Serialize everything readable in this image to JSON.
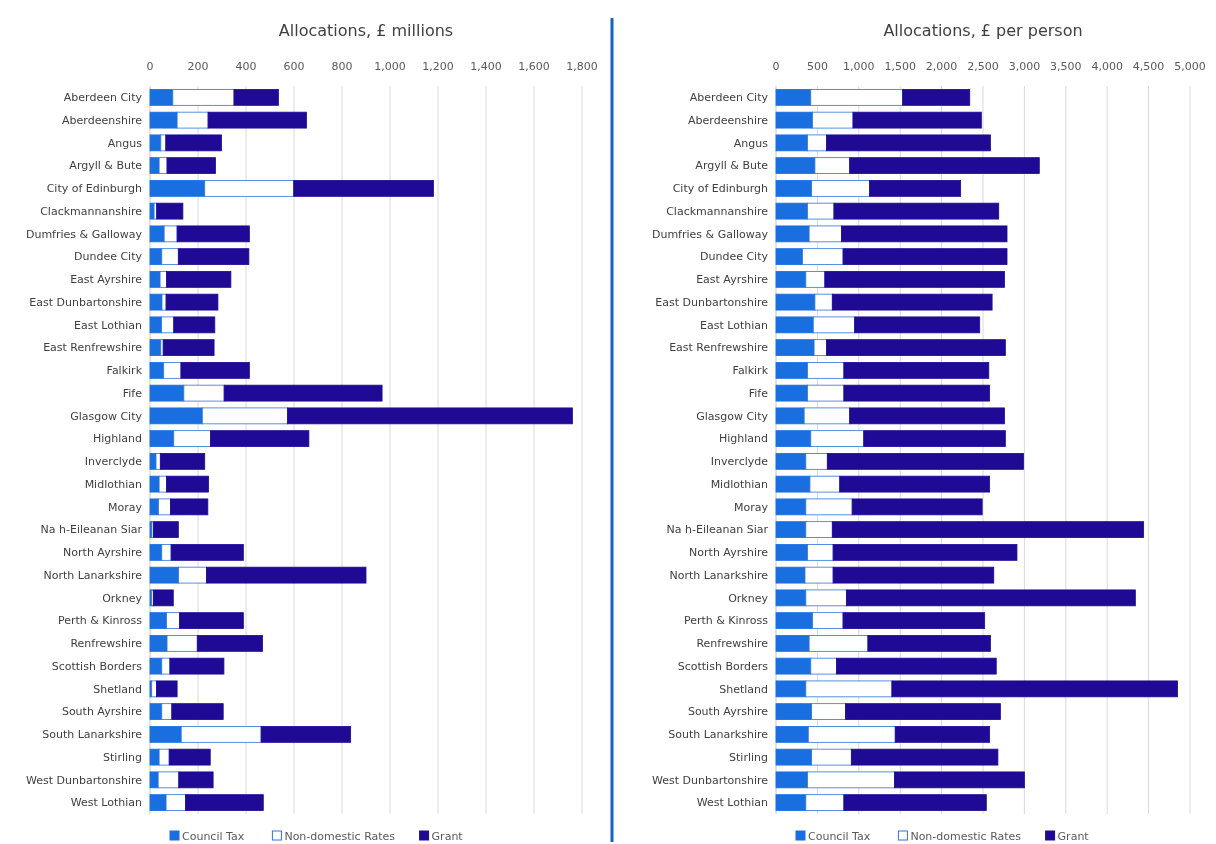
{
  "chart_data": [
    {
      "type": "bar",
      "orientation": "horizontal",
      "stacked": true,
      "title": "Allocations, £ millions",
      "legend": "bottom",
      "grid": "x",
      "categories": [
        "Aberdeen City",
        "Aberdeenshire",
        "Angus",
        "Argyll & Bute",
        "City of Edinburgh",
        "Clackmannanshire",
        "Dumfries & Galloway",
        "Dundee City",
        "East Ayrshire",
        "East Dunbartonshire",
        "East Lothian",
        "East Renfrewshire",
        "Falkirk",
        "Fife",
        "Glasgow City",
        "Highland",
        "Inverclyde",
        "Midlothian",
        "Moray",
        "Na h-Eileanan Siar",
        "North Ayrshire",
        "North Lanarkshire",
        "Orkney",
        "Perth & Kinross",
        "Renfrewshire",
        "Scottish Borders",
        "Shetland",
        "South Ayrshire",
        "South Lanarkshire",
        "Stirling",
        "West Dunbartonshire",
        "West Lothian"
      ],
      "xlim": [
        0,
        1800
      ],
      "xticks": [
        0,
        200,
        400,
        600,
        800,
        {
          "value": 1000,
          "label": "1,000"
        },
        {
          "value": 1200,
          "label": "1,200"
        },
        {
          "value": 1400,
          "label": "1,400"
        },
        {
          "value": 1600,
          "label": "1,600"
        },
        {
          "value": 1800,
          "label": "1,800"
        }
      ],
      "series": [
        {
          "name": "Council Tax",
          "color": "#1a6fe0",
          "values": [
            95,
            113,
            45,
            38,
            228,
            17,
            59,
            49,
            42,
            50,
            48,
            45,
            57,
            141,
            218,
            99,
            25,
            38,
            35,
            8,
            49,
            119,
            7,
            69,
            71,
            49,
            7,
            49,
            130,
            38,
            34,
            67
          ]
        },
        {
          "name": "Non-domestic Rates",
          "color": "#ffffff",
          "values": [
            255,
            129,
            21,
            33,
            371,
            11,
            54,
            69,
            27,
            17,
            51,
            10,
            72,
            168,
            355,
            153,
            18,
            31,
            50,
            7,
            39,
            116,
            7,
            54,
            126,
            34,
            20,
            42,
            333,
            42,
            86,
            81
          ]
        },
        {
          "name": "Grant",
          "color": "#1f0a96",
          "values": [
            185,
            410,
            232,
            202,
            582,
            109,
            301,
            294,
            268,
            216,
            171,
            212,
            285,
            658,
            1187,
            410,
            185,
            175,
            156,
            103,
            301,
            665,
            83,
            266,
            272,
            225,
            86,
            214,
            373,
            171,
            143,
            324
          ]
        }
      ]
    },
    {
      "type": "bar",
      "orientation": "horizontal",
      "stacked": true,
      "title": "Allocations, £ per person",
      "legend": "bottom",
      "grid": "x",
      "categories": [
        "Aberdeen City",
        "Aberdeenshire",
        "Angus",
        "Argyll & Bute",
        "City of Edinburgh",
        "Clackmannanshire",
        "Dumfries & Galloway",
        "Dundee City",
        "East Ayrshire",
        "East Dunbartonshire",
        "East Lothian",
        "East Renfrewshire",
        "Falkirk",
        "Fife",
        "Glasgow City",
        "Highland",
        "Inverclyde",
        "Midlothian",
        "Moray",
        "Na h-Eileanan Siar",
        "North Ayrshire",
        "North Lanarkshire",
        "Orkney",
        "Perth & Kinross",
        "Renfrewshire",
        "Scottish Borders",
        "Shetland",
        "South Ayrshire",
        "South Lanarkshire",
        "Stirling",
        "West Dunbartonshire",
        "West Lothian"
      ],
      "xlim": [
        0,
        5000
      ],
      "xticks": [
        0,
        500,
        {
          "value": 1000,
          "label": "1,000"
        },
        {
          "value": 1500,
          "label": "1,500"
        },
        {
          "value": 2000,
          "label": "2,000"
        },
        {
          "value": 2500,
          "label": "2,500"
        },
        {
          "value": 3000,
          "label": "3,000"
        },
        {
          "value": 3500,
          "label": "3,500"
        },
        {
          "value": 4000,
          "label": "4,000"
        },
        {
          "value": 4500,
          "label": "4,500"
        },
        {
          "value": 5000,
          "label": "5,000"
        }
      ],
      "series": [
        {
          "name": "Council Tax",
          "color": "#1a6fe0",
          "values": [
            420,
            440,
            380,
            470,
            430,
            380,
            400,
            320,
            360,
            470,
            450,
            460,
            380,
            380,
            340,
            420,
            360,
            410,
            360,
            360,
            380,
            350,
            360,
            440,
            400,
            420,
            360,
            430,
            390,
            430,
            380,
            360
          ]
        },
        {
          "name": "Non-domestic Rates",
          "color": "#ffffff",
          "values": [
            1110,
            490,
            230,
            420,
            700,
            320,
            390,
            490,
            230,
            210,
            500,
            150,
            440,
            440,
            550,
            640,
            260,
            360,
            560,
            320,
            310,
            340,
            490,
            370,
            710,
            310,
            1040,
            410,
            1050,
            480,
            1050,
            460
          ]
        },
        {
          "name": "Grant",
          "color": "#1f0a96",
          "values": [
            810,
            1550,
            1980,
            2290,
            1100,
            1990,
            2000,
            1980,
            2170,
            1930,
            1510,
            2160,
            1750,
            1760,
            1870,
            1710,
            2370,
            1810,
            1570,
            3760,
            2220,
            1940,
            3490,
            1710,
            1480,
            1930,
            3450,
            1870,
            1140,
            1770,
            1570,
            1720
          ]
        }
      ]
    }
  ]
}
